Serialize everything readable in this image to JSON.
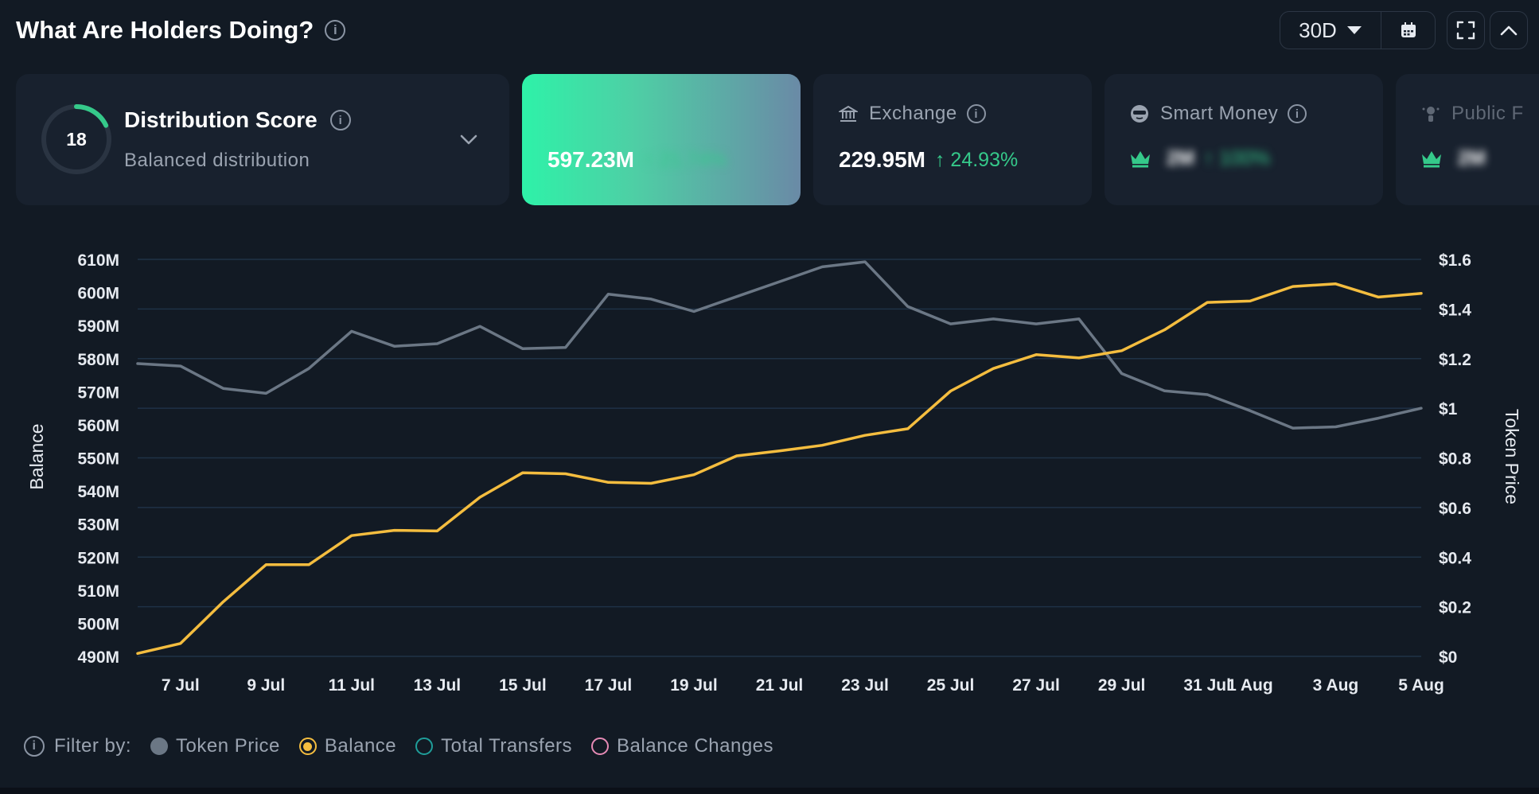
{
  "header": {
    "title": "What Are Holders Doing?",
    "period": "30D"
  },
  "cards": {
    "distribution": {
      "score": "18",
      "score_fraction": 0.18,
      "title": "Distribution Score",
      "subtitle": "Balanced distribution"
    },
    "total": {
      "value": "597.23M",
      "change": "↑ 21.74%"
    },
    "exchange": {
      "title": "Exchange",
      "value": "229.95M",
      "change": "↑ 24.93%"
    },
    "smart_money": {
      "title": "Smart Money",
      "value": "2M",
      "change": "↑ 100%"
    },
    "public": {
      "title": "Public F",
      "value": "2M"
    }
  },
  "legend": {
    "filter_label": "Filter by:",
    "items": [
      {
        "label": "Token Price",
        "color": "#6b7785",
        "selected": false
      },
      {
        "label": "Balance",
        "color": "#f4bd3f",
        "selected": true
      },
      {
        "label": "Total Transfers",
        "color": "#1f9e9a",
        "selected": false
      },
      {
        "label": "Balance Changes",
        "color": "#e58ab5",
        "selected": false
      }
    ]
  },
  "colors": {
    "accent": "#35c98a",
    "balance": "#f4bd3f",
    "price": "#6b7785",
    "grid": "#1f3246"
  },
  "chart_data": {
    "type": "line",
    "xlabel": "",
    "ylabel": "Balance",
    "y2label": "Token Price",
    "ylim": [
      490,
      610
    ],
    "y2lim": [
      0,
      1.6
    ],
    "y_ticks": [
      490,
      500,
      510,
      520,
      530,
      540,
      550,
      560,
      570,
      580,
      590,
      600,
      610
    ],
    "y_tick_labels": [
      "490M",
      "500M",
      "510M",
      "520M",
      "530M",
      "540M",
      "550M",
      "560M",
      "570M",
      "580M",
      "590M",
      "600M",
      "610M"
    ],
    "y2_ticks": [
      0,
      0.2,
      0.4,
      0.6,
      0.8,
      1.0,
      1.2,
      1.4,
      1.6
    ],
    "y2_tick_labels": [
      "$0",
      "$0.2",
      "$0.4",
      "$0.6",
      "$0.8",
      "$1",
      "$1.2",
      "$1.4",
      "$1.6"
    ],
    "x": [
      "6 Jul",
      "7 Jul",
      "8 Jul",
      "9 Jul",
      "10 Jul",
      "11 Jul",
      "12 Jul",
      "13 Jul",
      "14 Jul",
      "15 Jul",
      "16 Jul",
      "17 Jul",
      "18 Jul",
      "19 Jul",
      "20 Jul",
      "21 Jul",
      "22 Jul",
      "23 Jul",
      "24 Jul",
      "25 Jul",
      "26 Jul",
      "27 Jul",
      "28 Jul",
      "29 Jul",
      "30 Jul",
      "31 Jul",
      "1 Aug",
      "2 Aug",
      "3 Aug",
      "4 Aug",
      "5 Aug"
    ],
    "x_tick_labels": [
      "7 Jul",
      "9 Jul",
      "11 Jul",
      "13 Jul",
      "15 Jul",
      "17 Jul",
      "19 Jul",
      "21 Jul",
      "23 Jul",
      "25 Jul",
      "27 Jul",
      "29 Jul",
      "31 Jul",
      "1 Aug",
      "3 Aug",
      "5 Aug"
    ],
    "series": [
      {
        "name": "Balance",
        "axis": "left",
        "color": "#f4bd3f",
        "values": [
          490.9,
          493.9,
          506.5,
          517.7,
          517.7,
          526.5,
          528.1,
          527.9,
          538.1,
          545.5,
          545.2,
          542.6,
          542.3,
          544.9,
          550.6,
          552.1,
          553.8,
          556.8,
          558.8,
          570.2,
          577.0,
          581.2,
          580.2,
          582.4,
          588.7,
          597.0,
          597.4,
          601.8,
          602.6,
          598.6,
          599.7
        ]
      },
      {
        "name": "Token Price",
        "axis": "right",
        "color": "#6b7785",
        "values": [
          1.18,
          1.17,
          1.08,
          1.06,
          1.16,
          1.31,
          1.25,
          1.26,
          1.33,
          1.24,
          1.245,
          1.46,
          1.44,
          1.39,
          1.45,
          1.51,
          1.57,
          1.59,
          1.41,
          1.34,
          1.36,
          1.34,
          1.36,
          1.14,
          1.07,
          1.055,
          0.99,
          0.92,
          0.925,
          0.96,
          1.0
        ]
      }
    ],
    "grid": true
  }
}
